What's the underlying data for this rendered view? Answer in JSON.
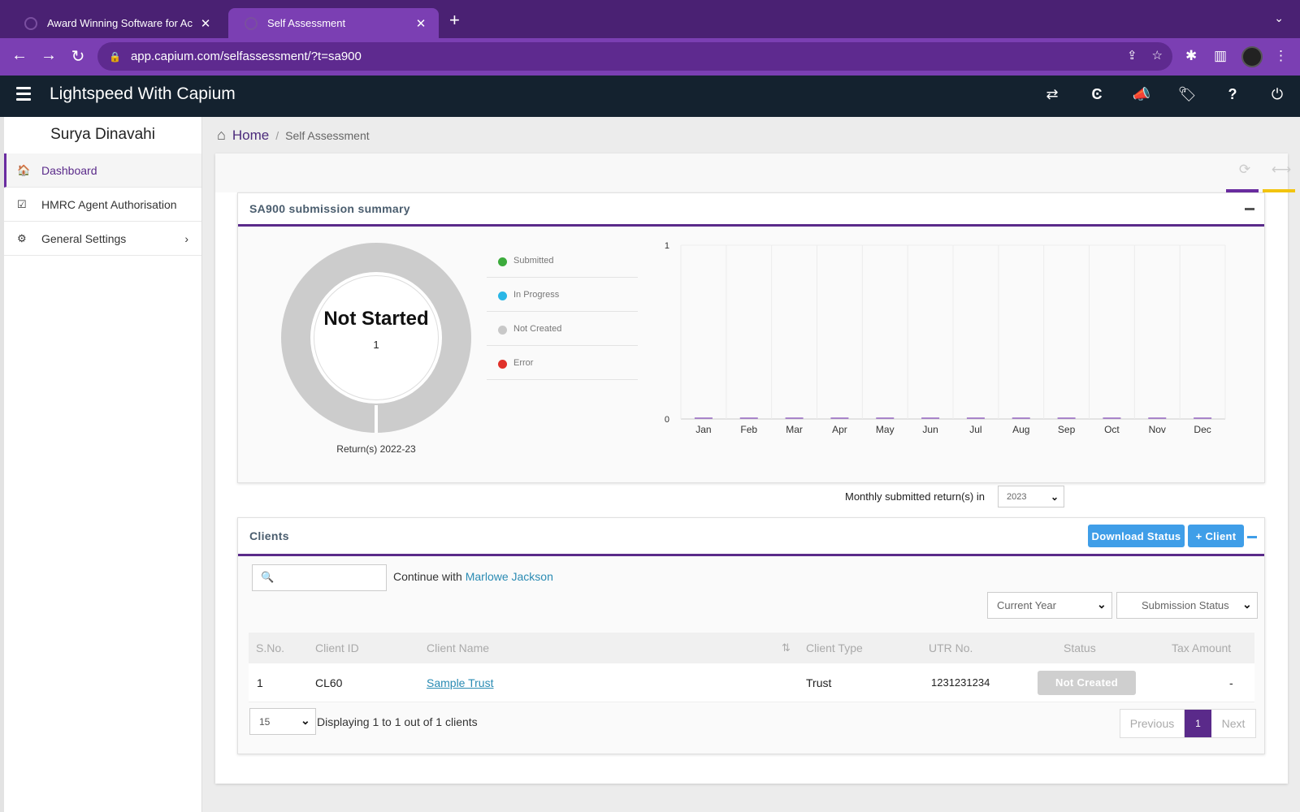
{
  "browser": {
    "tabs": [
      {
        "title": "Award Winning Software for Ac"
      },
      {
        "title": "Self Assessment"
      }
    ],
    "url": "app.capium.com/selfassessment/?t=sa900"
  },
  "app": {
    "name": "Lightspeed With Capium",
    "header_icons": [
      "switch-icon",
      "capium-logo-icon",
      "megaphone-icon",
      "tag-icon",
      "help-icon",
      "power-icon"
    ]
  },
  "sidebar": {
    "user_name": "Surya Dinavahi",
    "items": [
      {
        "label": "Dashboard",
        "icon": "home-icon",
        "active": true
      },
      {
        "label": "HMRC Agent Authorisation",
        "icon": "checkbox-icon"
      },
      {
        "label": "General Settings",
        "icon": "gears-icon"
      }
    ]
  },
  "breadcrumb": {
    "home": "Home",
    "current": "Self Assessment"
  },
  "summary": {
    "title": "SA900 submission summary",
    "donut_title": "Not Started",
    "donut_count": "1",
    "donut_caption": "Return(s) 2022-23",
    "legend": [
      {
        "label": "Submitted",
        "color": "#3cab3c"
      },
      {
        "label": "In Progress",
        "color": "#29b6e6"
      },
      {
        "label": "Not Created",
        "color": "#c8c8c8"
      },
      {
        "label": "Error",
        "color": "#e0312a"
      }
    ],
    "year_label": "Monthly submitted return(s) in",
    "year_value": "2023"
  },
  "chart_data": {
    "type": "bar",
    "categories": [
      "Jan",
      "Feb",
      "Mar",
      "Apr",
      "May",
      "Jun",
      "Jul",
      "Aug",
      "Sep",
      "Oct",
      "Nov",
      "Dec"
    ],
    "values": [
      0,
      0,
      0,
      0,
      0,
      0,
      0,
      0,
      0,
      0,
      0,
      0
    ],
    "ylim": [
      0,
      1
    ],
    "yticks": [
      "0",
      "1"
    ],
    "bar_color": "#7b3fb3",
    "grid": true
  },
  "clients": {
    "title": "Clients",
    "download_btn": "Download Status",
    "add_btn": "+ Client",
    "search_placeholder": "",
    "continue_text": "Continue with",
    "continue_link": "Marlowe Jackson",
    "filter_year": "Current Year",
    "filter_status": "Submission Status",
    "columns": [
      "S.No.",
      "Client ID",
      "Client Name",
      "Client Type",
      "UTR No.",
      "Status",
      "Tax Amount"
    ],
    "rows": [
      {
        "sno": "1",
        "id": "CL60",
        "name": "Sample Trust",
        "type": "Trust",
        "utr": "1231231234",
        "status": "Not Created",
        "tax": "-"
      }
    ],
    "page_size": "15",
    "page_info": "Displaying 1 to 1 out of 1 clients",
    "pager": {
      "prev": "Previous",
      "current": "1",
      "next": "Next"
    }
  }
}
